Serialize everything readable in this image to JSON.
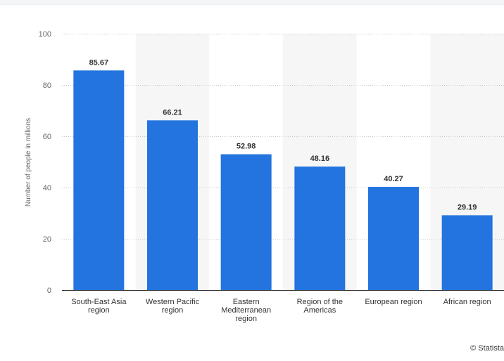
{
  "chart_data": {
    "type": "bar",
    "categories": [
      [
        "South-East Asia",
        "region"
      ],
      [
        "Western Pacific",
        "region"
      ],
      [
        "Eastern",
        "Mediterranean",
        "region"
      ],
      [
        "Region of the",
        "Americas"
      ],
      [
        "European region"
      ],
      [
        "African region"
      ]
    ],
    "values": [
      85.67,
      66.21,
      52.98,
      48.16,
      40.27,
      29.19
    ],
    "data_labels": [
      "85.67",
      "66.21",
      "52.98",
      "48.16",
      "40.27",
      "29.19"
    ],
    "ylabel": "Number of people in millions",
    "ylim": [
      0,
      100
    ],
    "yticks": [
      0,
      20,
      40,
      60,
      80,
      100
    ],
    "grid": true,
    "bar_color": "#2374de",
    "band_color": "#f6f6f6"
  },
  "footer": {
    "credit": "© Statista"
  }
}
